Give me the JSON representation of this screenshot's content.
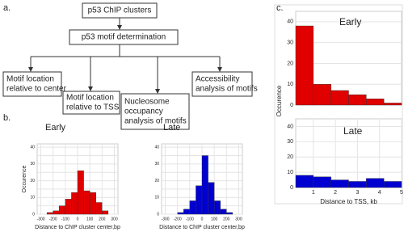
{
  "panel_labels": [
    "a.",
    "b.",
    "c."
  ],
  "diagram": {
    "nodes": [
      {
        "lines": [
          "p53 ChIP clusters"
        ]
      },
      {
        "lines": [
          "p53 motif determination"
        ]
      },
      {
        "lines": [
          "Motif location",
          "relative to center"
        ]
      },
      {
        "lines": [
          "Motif location",
          "relative to TSS"
        ]
      },
      {
        "lines": [
          "Nucleosome",
          "occupancy",
          "analysis of motifs"
        ]
      },
      {
        "lines": [
          "Accessibility",
          "analysis of motifs"
        ]
      }
    ]
  },
  "chart_data": [
    {
      "type": "histogram",
      "title": "Early",
      "color": "#e00000",
      "title_color": "#e00000",
      "bins": [
        -250,
        -200,
        -150,
        -100,
        -50,
        0,
        50,
        100,
        150,
        200,
        250
      ],
      "values": [
        1,
        2,
        5,
        9,
        13,
        26,
        14,
        13,
        7,
        2
      ],
      "xlim": [
        -330,
        330
      ],
      "xticks": [
        -300,
        -200,
        -100,
        0,
        100,
        200,
        300
      ],
      "ylim": [
        0,
        42
      ],
      "yticks": [
        0,
        5,
        10,
        15,
        20,
        25,
        30,
        35,
        40
      ],
      "x_label": "Distance to ChIP cluster center,bp",
      "y_label": "Occurence",
      "grid": true
    },
    {
      "type": "histogram",
      "title": "Late",
      "color": "#0000d0",
      "title_color": "#0000d0",
      "bins": [
        -250,
        -200,
        -150,
        -100,
        -50,
        0,
        50,
        100,
        150,
        200,
        250
      ],
      "values": [
        0,
        1,
        3,
        8,
        17,
        35,
        19,
        8,
        3,
        1
      ],
      "xlim": [
        -330,
        330
      ],
      "xticks": [
        -300,
        -200,
        -100,
        0,
        100,
        200,
        300
      ],
      "ylim": [
        0,
        42
      ],
      "yticks": [
        0,
        5,
        10,
        15,
        20,
        25,
        30,
        35,
        40
      ],
      "x_label": "Distance to ChIP cluster center,bp",
      "y_label": "Occurence",
      "grid": true
    },
    {
      "type": "histogram",
      "title": "Early",
      "color": "#e00000",
      "title_color": "#e00000",
      "bins": [
        0.2,
        1,
        1.8,
        2.6,
        3.4,
        4.2,
        5
      ],
      "values": [
        38,
        10,
        7,
        5,
        3,
        1
      ],
      "xlim": [
        0.2,
        5
      ],
      "xticks": [],
      "ylim": [
        0,
        45
      ],
      "yticks": [
        0,
        10,
        20,
        30,
        40
      ],
      "y_label": "Occurence",
      "grid": true
    },
    {
      "type": "histogram",
      "title": "Late",
      "color": "#0000d0",
      "title_color": "#0000d0",
      "bins": [
        0.2,
        1,
        1.8,
        2.6,
        3.4,
        4.2,
        5
      ],
      "values": [
        8,
        7,
        5,
        4,
        6,
        4
      ],
      "xlim": [
        0.2,
        5
      ],
      "xticks": [
        1,
        2,
        3,
        4,
        5
      ],
      "ylim": [
        0,
        45
      ],
      "yticks": [
        0,
        10,
        20,
        30,
        40
      ],
      "x_label": "Distance to TSS, kb",
      "grid": true
    }
  ]
}
